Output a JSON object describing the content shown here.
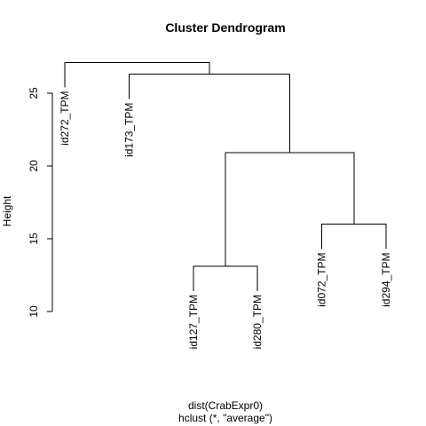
{
  "chart_data": {
    "type": "dendrogram",
    "title": "Cluster Dendrogram",
    "ylabel": "Height",
    "xlabel": "dist(CrabExpr0)",
    "sublabel": "hclust (*, \"average\")",
    "ylim": [
      10,
      27.5
    ],
    "y_ticks": [
      10,
      15,
      20,
      25
    ],
    "y_tick_labels": [
      "10",
      "15",
      "20",
      "25"
    ],
    "leaves": [
      "id272_TPM",
      "id173_TPM",
      "id127_TPM",
      "id280_TPM",
      "id072_TPM",
      "id294_TPM"
    ],
    "merges": [
      {
        "left": "leaf:id127_TPM",
        "right": "leaf:id280_TPM",
        "height": 13.1
      },
      {
        "left": "leaf:id072_TPM",
        "right": "leaf:id294_TPM",
        "height": 16.0
      },
      {
        "left": "merge:0",
        "right": "merge:1",
        "height": 20.9
      },
      {
        "left": "leaf:id173_TPM",
        "right": "merge:2",
        "height": 26.3
      },
      {
        "left": "leaf:id272_TPM",
        "right": "merge:3",
        "height": 27.1
      }
    ],
    "leaf_label_heights": {
      "id272_TPM": 25.4,
      "id173_TPM": 24.6,
      "id127_TPM": 11.4,
      "id280_TPM": 11.4,
      "id072_TPM": 14.3,
      "id294_TPM": 14.3
    },
    "grid": false,
    "legend": "none"
  }
}
